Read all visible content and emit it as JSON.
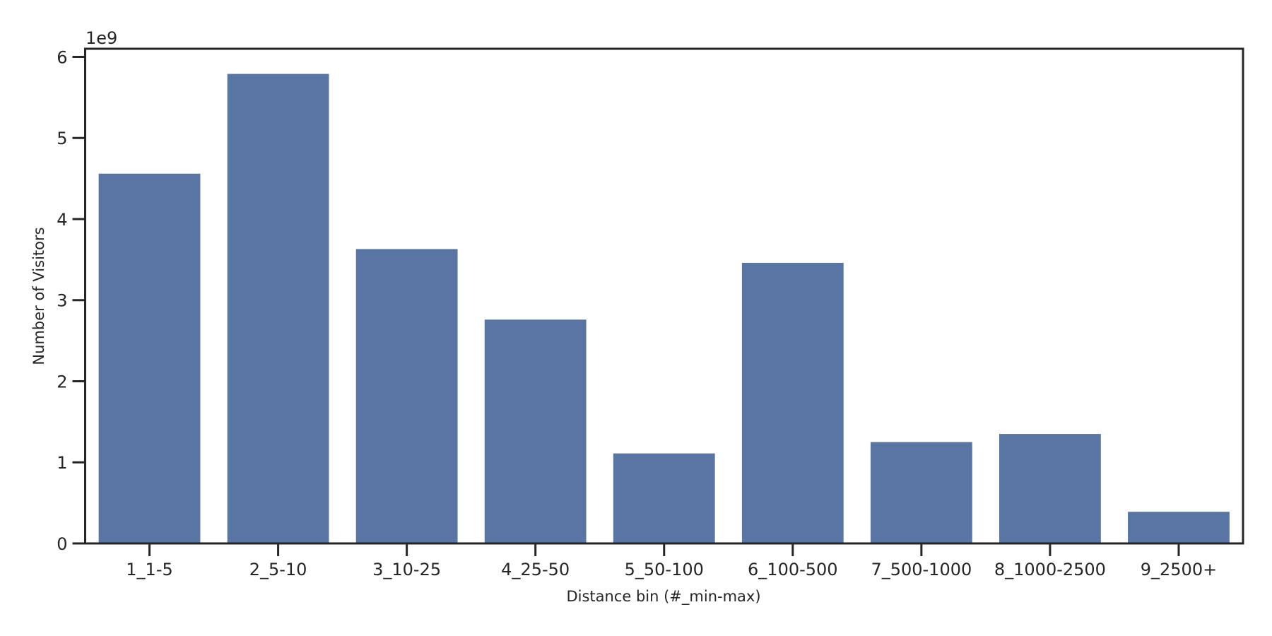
{
  "chart_data": {
    "type": "bar",
    "title": "",
    "xlabel": "Distance bin (#_min-max)",
    "ylabel": "Number of Visitors",
    "y_offset_label": "1e9",
    "categories": [
      "1_1-5",
      "2_5-10",
      "3_10-25",
      "4_25-50",
      "5_50-100",
      "6_100-500",
      "7_500-1000",
      "8_1000-2500",
      "9_2500+"
    ],
    "values": [
      4560000000.0,
      5790000000.0,
      3630000000.0,
      2760000000.0,
      1110000000.0,
      3460000000.0,
      1250000000.0,
      1350000000.0,
      390000000.0
    ],
    "ylim": [
      0,
      6100000000.0
    ],
    "yticks": [
      0,
      1,
      2,
      3,
      4,
      5,
      6
    ],
    "ytick_labels": [
      "0",
      "1",
      "2",
      "3",
      "4",
      "5",
      "6"
    ],
    "grid": false,
    "bar_color": "#5975a4"
  }
}
